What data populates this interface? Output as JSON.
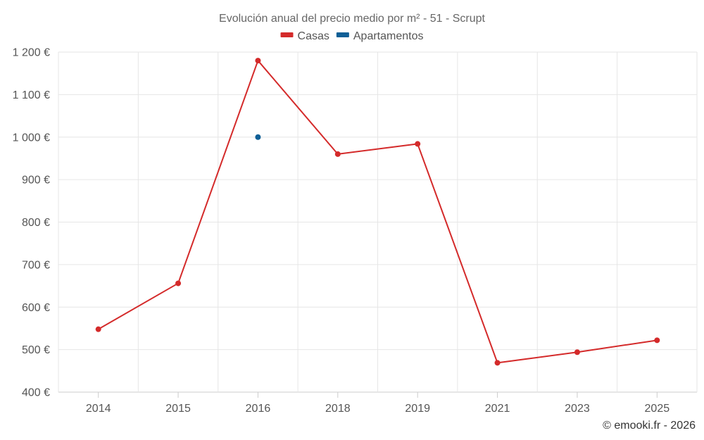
{
  "chart_data": {
    "type": "line",
    "title": "Evolución anual del precio medio por m² - 51 - Scrupt",
    "categories": [
      "2014",
      "2015",
      "2016",
      "2018",
      "2019",
      "2021",
      "2023",
      "2025"
    ],
    "series": [
      {
        "name": "Casas",
        "color": "#d42a2a",
        "values": [
          548,
          656,
          1180,
          960,
          984,
          469,
          494,
          522
        ]
      },
      {
        "name": "Apartamentos",
        "color": "#0e5f96",
        "values": [
          null,
          null,
          1000,
          null,
          null,
          null,
          null,
          null
        ]
      }
    ],
    "y_ticks": [
      {
        "value": 400,
        "label": "400 €"
      },
      {
        "value": 500,
        "label": "500 €"
      },
      {
        "value": 600,
        "label": "600 €"
      },
      {
        "value": 700,
        "label": "700 €"
      },
      {
        "value": 800,
        "label": "800 €"
      },
      {
        "value": 900,
        "label": "900 €"
      },
      {
        "value": 1000,
        "label": "1 000 €"
      },
      {
        "value": 1100,
        "label": "1 100 €"
      },
      {
        "value": 1200,
        "label": "1 200 €"
      }
    ],
    "ylim": [
      400,
      1200
    ],
    "xlabel": "",
    "ylabel": "",
    "grid": true,
    "legend_position": "top-center"
  },
  "credit": "© emooki.fr - 2026"
}
